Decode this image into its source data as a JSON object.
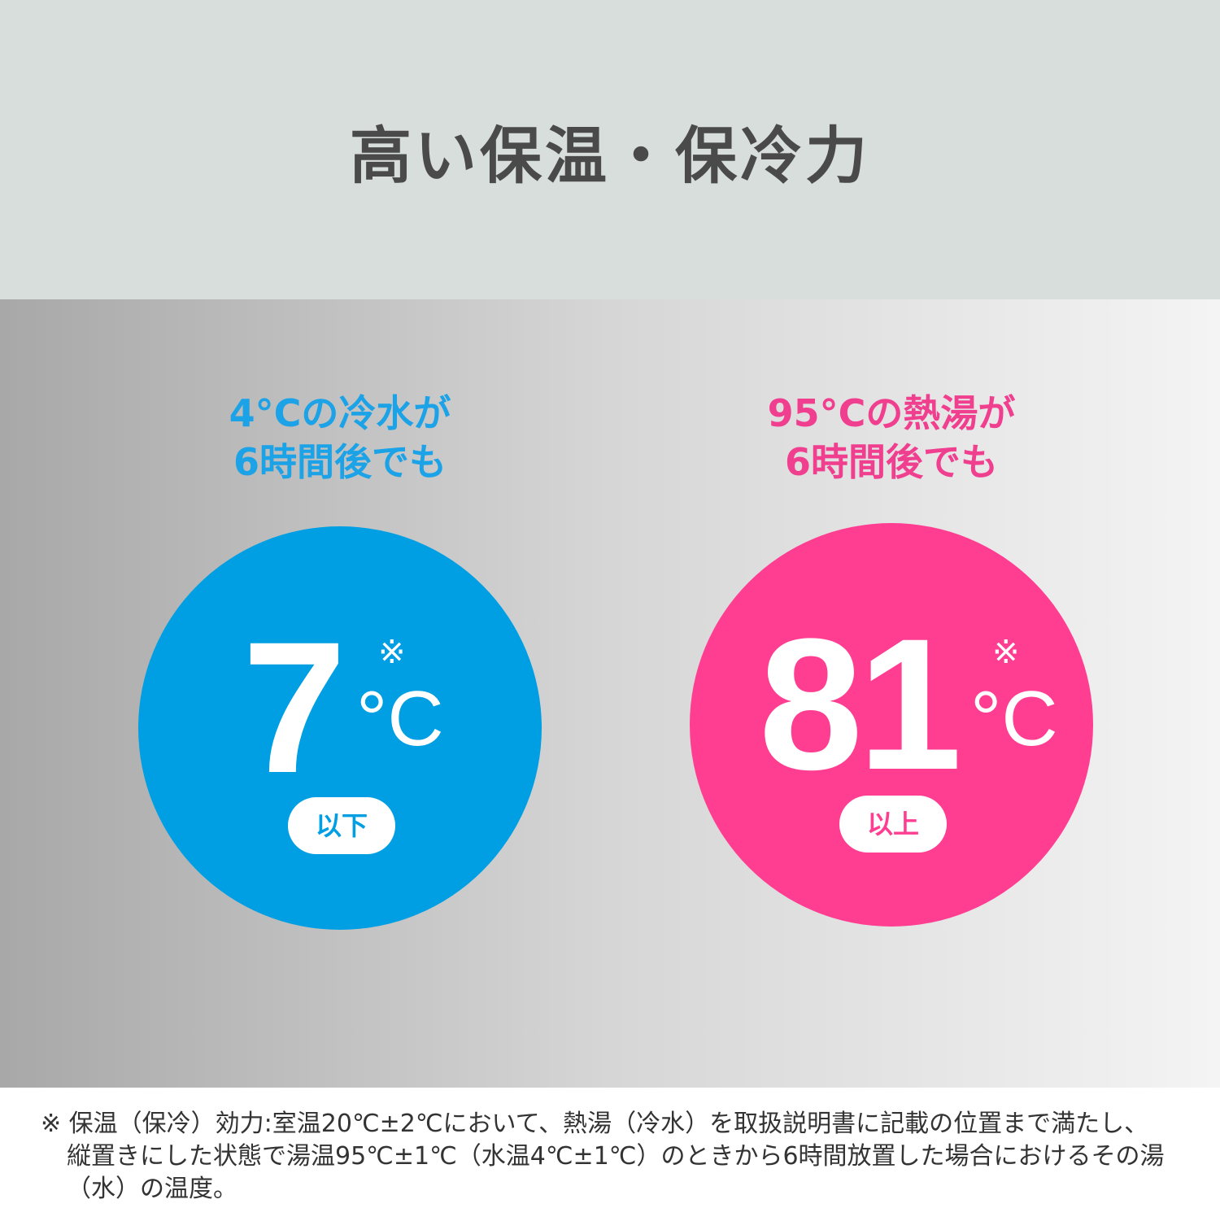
{
  "title": "高い保温・保冷力",
  "colors": {
    "cold": "#009fe3",
    "hot": "#ff3e92"
  },
  "cold": {
    "heading_1": "4°Cの冷水が",
    "heading_2": "6時間後でも",
    "value": "7",
    "mark": "※",
    "unit": "°C",
    "qualifier": "以下"
  },
  "hot": {
    "heading_1": "95°Cの熱湯が",
    "heading_2": "6時間後でも",
    "value": "81",
    "mark": "※",
    "unit": "°C",
    "qualifier": "以上"
  },
  "footnote": {
    "line1": "※ 保温（保冷）効力:室温20℃±2℃において、熱湯（冷水）を取扱説明書に記載の位置まで満たし、",
    "line2": "縦置きにした状態で湯温95℃±1℃（水温4℃±1℃）のときから6時間放置した場合におけるその湯",
    "line3": "（水）の温度。"
  }
}
